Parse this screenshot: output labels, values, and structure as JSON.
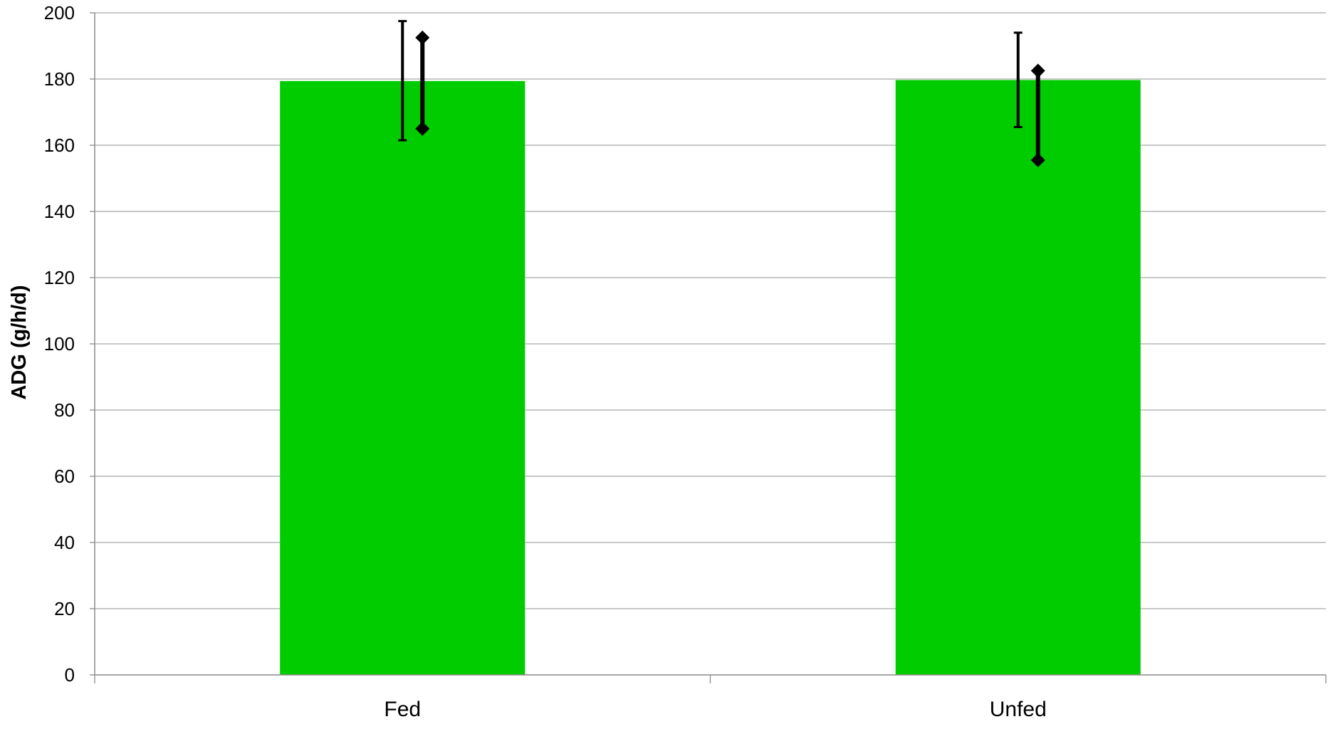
{
  "chart_data": {
    "type": "bar",
    "title": "",
    "xlabel": "",
    "ylabel": "ADG (g/h/d)",
    "categories": [
      "Fed",
      "Unfed"
    ],
    "series": [
      {
        "values": [
          179.4,
          179.7
        ],
        "color": "#00cc00"
      }
    ],
    "error_bars": [
      {
        "style": "cap",
        "values": [
          {
            "low": 161.5,
            "high": 197.5
          },
          {
            "low": 165.5,
            "high": 194
          }
        ]
      },
      {
        "style": "diamond",
        "values": [
          {
            "low": 165,
            "high": 192.5
          },
          {
            "low": 155.5,
            "high": 182.5
          }
        ]
      }
    ],
    "ylim": [
      0,
      200
    ],
    "yticks": [
      "0",
      "20",
      "40",
      "60",
      "80",
      "100",
      "120",
      "140",
      "160",
      "180",
      "200"
    ],
    "grid": true,
    "legend": "none"
  }
}
